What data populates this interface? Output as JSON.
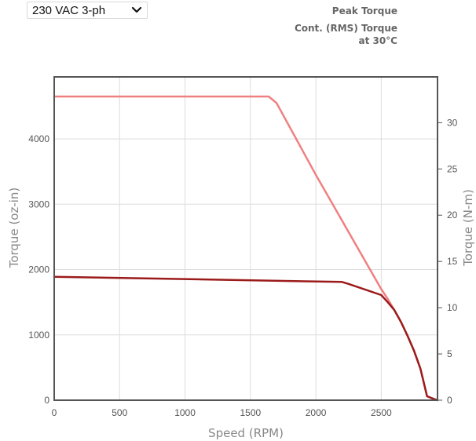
{
  "voltage_select": {
    "value": "230 VAC 3-ph"
  },
  "legend": {
    "peak": "Peak Torque",
    "cont_line1": "Cont. (RMS) Torque",
    "cont_line2": "at 30°C"
  },
  "colors": {
    "peak": "#f08080",
    "cont": "#9b1b1b",
    "grid": "#dddddd",
    "axis": "#555555"
  },
  "chart_data": {
    "type": "line",
    "xlabel": "Speed (RPM)",
    "ylabel": "Torque (oz-in)",
    "y2label": "Torque (N-m)",
    "xlim": [
      0,
      2930
    ],
    "ylim": [
      0,
      4950
    ],
    "y2lim": [
      0,
      34.95
    ],
    "xticks": [
      0,
      500,
      1000,
      1500,
      2000,
      2500
    ],
    "yticks": [
      0,
      1000,
      2000,
      3000,
      4000
    ],
    "y2ticks": [
      0,
      5,
      10,
      15,
      20,
      25,
      30
    ],
    "grid": true,
    "series": [
      {
        "name": "Peak Torque",
        "x": [
          0,
          1640,
          1700,
          2000,
          2300,
          2500,
          2550,
          2600,
          2650,
          2700,
          2750,
          2800,
          2850,
          2900,
          2930
        ],
        "y": [
          4650,
          4650,
          4550,
          3450,
          2400,
          1700,
          1550,
          1380,
          1200,
          990,
          760,
          480,
          60,
          20,
          0
        ]
      },
      {
        "name": "Cont. (RMS) Torque at 30°C",
        "x": [
          0,
          2200,
          2250,
          2500,
          2550,
          2600,
          2650,
          2700,
          2750,
          2800,
          2850,
          2900,
          2930
        ],
        "y": [
          1890,
          1810,
          1780,
          1610,
          1500,
          1380,
          1200,
          990,
          760,
          480,
          60,
          20,
          0
        ]
      }
    ]
  }
}
